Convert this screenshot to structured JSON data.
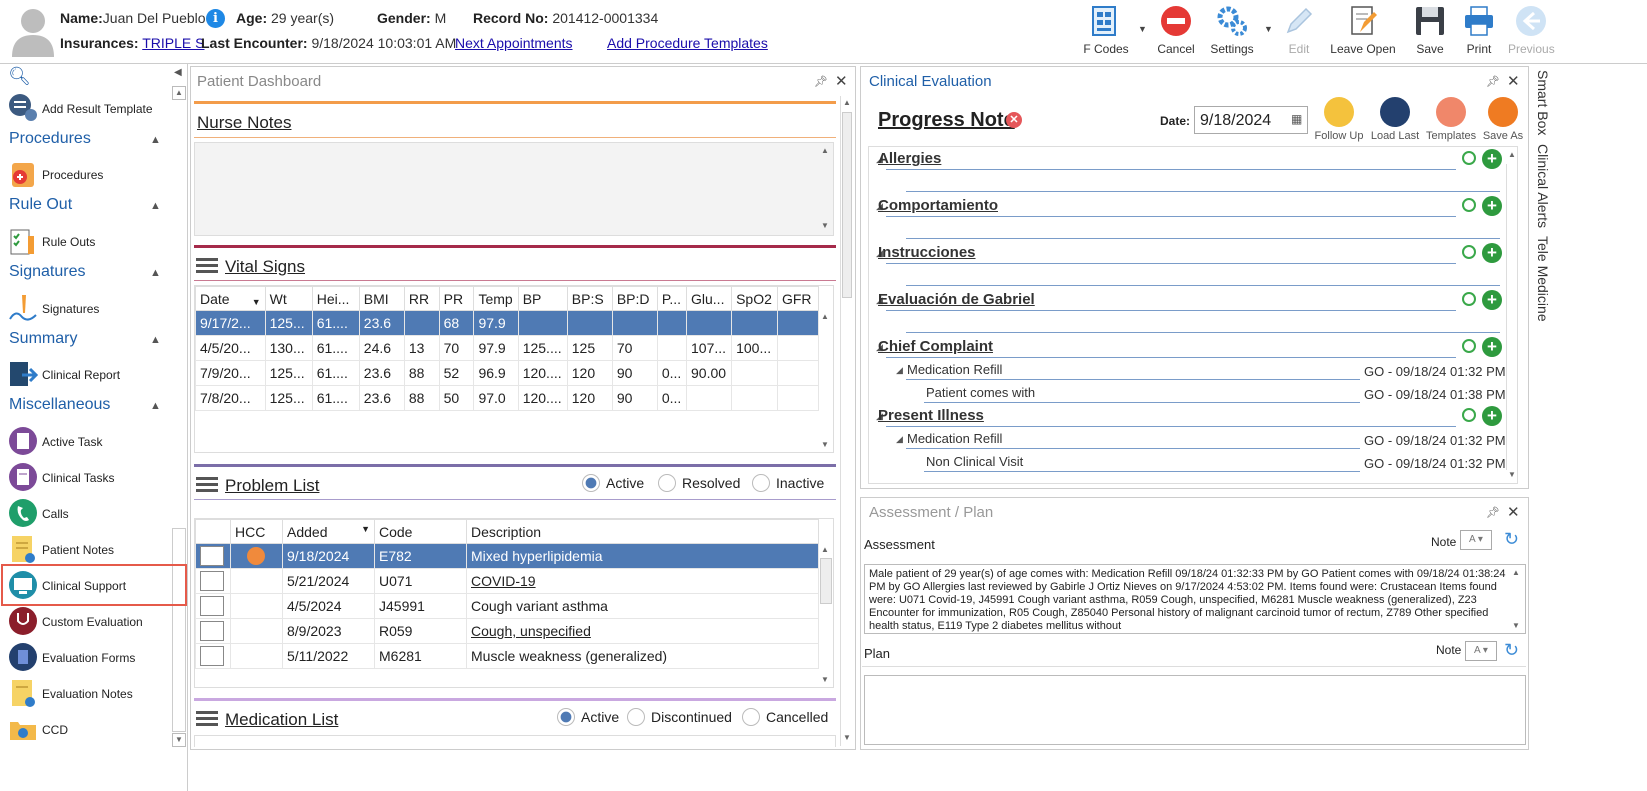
{
  "header": {
    "name_label": "Name:",
    "name": "Juan Del Pueblo",
    "age_label": "Age:",
    "age": "29 year(s)",
    "gender_label": "Gender:",
    "gender": "M",
    "record_label": "Record No:",
    "record": "201412-0001334",
    "insurances_label": "Insurances:",
    "insurance": "TRIPLE S",
    "last_encounter_label": "Last Encounter:",
    "last_encounter": "9/18/2024 10:03:01 AM",
    "next_appointments": "Next Appointments",
    "add_procedure_templates": "Add Procedure Templates"
  },
  "toolbar": {
    "f_codes": "F Codes",
    "cancel": "Cancel",
    "settings": "Settings",
    "edit": "Edit",
    "leave_open": "Leave Open",
    "save": "Save",
    "print": "Print",
    "previous": "Previous"
  },
  "sidebar": {
    "add_result_template": "Add Result Template",
    "procedures_section": "Procedures",
    "procedures": "Procedures",
    "rule_out_section": "Rule Out",
    "rule_outs": "Rule Outs",
    "signatures_section": "Signatures",
    "signatures": "Signatures",
    "summary_section": "Summary",
    "clinical_report": "Clinical Report",
    "misc_section": "Miscellaneous",
    "active_task": "Active Task",
    "clinical_tasks": "Clinical Tasks",
    "calls": "Calls",
    "patient_notes": "Patient Notes",
    "clinical_support": "Clinical Support",
    "custom_evaluation": "Custom Evaluation",
    "evaluation_forms": "Evaluation Forms",
    "evaluation_notes": "Evaluation Notes",
    "ccd": "CCD"
  },
  "dashboard": {
    "title": "Patient Dashboard",
    "nurse_notes": "Nurse Notes",
    "vital_signs": "Vital Signs",
    "vitals_columns": [
      "Date",
      "Wt",
      "Hei...",
      "BMI",
      "RR",
      "PR",
      "Temp",
      "BP",
      "BP:S",
      "BP:D",
      "P...",
      "Glu...",
      "SpO2",
      "GFR"
    ],
    "vitals_rows": [
      [
        "9/17/2...",
        "125...",
        "61....",
        "23.6",
        "",
        "68",
        "97.9",
        "",
        "",
        "",
        "",
        "",
        "",
        ""
      ],
      [
        "4/5/20...",
        "130...",
        "61....",
        "24.6",
        "13",
        "70",
        "97.9",
        "125....",
        "125",
        "70",
        "",
        "107...",
        "100...",
        ""
      ],
      [
        "7/9/20...",
        "125...",
        "61....",
        "23.6",
        "88",
        "52",
        "96.9",
        "120....",
        "120",
        "90",
        "0...",
        "90.00",
        "",
        ""
      ],
      [
        "7/8/20...",
        "125...",
        "61....",
        "23.6",
        "88",
        "50",
        "97.0",
        "120....",
        "120",
        "90",
        "0...",
        "",
        "",
        ""
      ]
    ],
    "problem_list": "Problem List",
    "problem_filter": {
      "active": "Active",
      "resolved": "Resolved",
      "inactive": "Inactive"
    },
    "problem_columns": [
      "HCC",
      "Added",
      "Code",
      "Description"
    ],
    "problems": [
      {
        "added": "9/18/2024",
        "code": "E782",
        "description": "Mixed hyperlipidemia"
      },
      {
        "added": "5/21/2024",
        "code": "U071",
        "description": "COVID-19"
      },
      {
        "added": "4/5/2024",
        "code": "J45991",
        "description": "Cough variant asthma"
      },
      {
        "added": "8/9/2023",
        "code": "R059",
        "description": "Cough, unspecified"
      },
      {
        "added": "5/11/2022",
        "code": "M6281",
        "description": "Muscle weakness (generalized)"
      }
    ],
    "medication_list": "Medication List",
    "medication_filter": {
      "active": "Active",
      "discontinued": "Discontinued",
      "cancelled": "Cancelled"
    }
  },
  "clinical_eval": {
    "title": "Clinical Evaluation",
    "progress_note": "Progress Note",
    "date_label": "Date:",
    "date": "9/18/2024",
    "follow_up": "Follow Up",
    "load_last": "Load Last",
    "templates": "Templates",
    "save_as": "Save As",
    "sections": {
      "allergies": "Allergies",
      "comportamiento": "Comportamiento",
      "instrucciones": "Instrucciones",
      "evaluacion": "Evaluación de Gabriel",
      "chief_complaint": "Chief Complaint",
      "present_illness": "Present Illness"
    },
    "cc_med_refill": "Medication Refill",
    "cc_med_refill_date": "GO - 09/18/24 01:32 PM",
    "cc_patient_comes": "Patient comes with",
    "cc_patient_comes_date": "GO - 09/18/24 01:38 PM",
    "pi_med_refill": "Medication Refill",
    "pi_med_refill_date": "GO - 09/18/24 01:32 PM",
    "pi_non_clinical": "Non Clinical Visit",
    "pi_non_clinical_date": "GO - 09/18/24 01:32 PM"
  },
  "side_tabs": {
    "smart_box": "Smart Box",
    "clinical_alerts": "Clinical Alerts",
    "tele_medicine": "Tele Medicine"
  },
  "assessment": {
    "title": "Assessment / Plan",
    "assessment_label": "Assessment",
    "note_label": "Note",
    "assessment_text": "Male patient of 29 year(s) of age comes with:   Medication Refill   09/18/24 01:32:33 PM by GO  Patient comes with 09/18/24 01:38:24 PM by GO     Allergies last reviewed by Gabirle J Ortiz Nieves on 9/17/2024 4:53:02 PM.    Items found were:  Crustacean  Items found were:  U071 Covid-19, J45991 Cough variant asthma, R059 Cough, unspecified, M6281 Muscle weakness (generalized), Z23 Encounter for immunization, R05 Cough, Z85040 Personal history of malignant carcinoid tumor of rectum, Z789 Other specified health status, E119 Type 2 diabetes mellitus without",
    "plan_label": "Plan",
    "plan_note_label": "Note"
  }
}
